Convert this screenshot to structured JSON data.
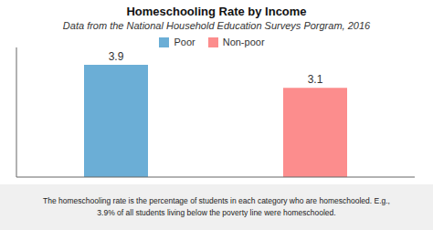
{
  "chart_data": {
    "type": "bar",
    "title": "Homeschooling Rate by Income",
    "subtitle": "Data from the National Household Education Surveys Porgram, 2016",
    "categories": [
      "Poor",
      "Non-poor"
    ],
    "values": [
      3.9,
      3.1
    ],
    "colors": [
      "#6BAED6",
      "#FC8D8D"
    ],
    "ylim": [
      0,
      4.5
    ],
    "data_labels": true,
    "tick_labels": false,
    "grid": false,
    "legend": "top",
    "annotations": [
      "The homeschooling rate is the percentage of students in each category who are homeschooled. E.g.,",
      "3.9% of all students living below the poverty line were homeschooled."
    ]
  }
}
